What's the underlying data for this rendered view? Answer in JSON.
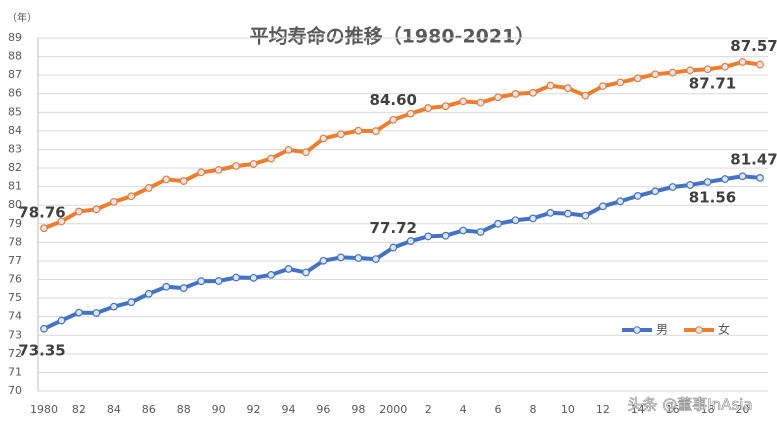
{
  "chart_data": {
    "type": "line",
    "title": "平均寿命の推移（1980-2021）",
    "y_axis_label": "（年）",
    "watermark": "头条 @董事InAsia",
    "categories": [
      "1980",
      null,
      "82",
      null,
      "84",
      null,
      "86",
      null,
      "88",
      null,
      "90",
      null,
      "92",
      null,
      "94",
      null,
      "96",
      null,
      "98",
      null,
      "2000",
      null,
      "2",
      null,
      "4",
      null,
      "6",
      null,
      "8",
      null,
      "10",
      null,
      "12",
      null,
      "14",
      null,
      "16",
      null,
      "18",
      null,
      "20",
      null
    ],
    "series": [
      {
        "name": "男",
        "color": "#4472c4",
        "values": [
          73.35,
          73.79,
          74.22,
          74.2,
          74.54,
          74.78,
          75.23,
          75.61,
          75.54,
          75.91,
          75.92,
          76.11,
          76.09,
          76.25,
          76.57,
          76.38,
          77.01,
          77.19,
          77.16,
          77.1,
          77.72,
          78.07,
          78.32,
          78.36,
          78.64,
          78.56,
          79.0,
          79.19,
          79.29,
          79.59,
          79.55,
          79.44,
          79.94,
          80.21,
          80.5,
          80.75,
          80.98,
          81.09,
          81.25,
          81.41,
          81.56,
          81.47
        ],
        "value_labels": [
          "73.35",
          null,
          null,
          null,
          null,
          null,
          null,
          null,
          null,
          null,
          null,
          null,
          null,
          null,
          null,
          null,
          null,
          null,
          null,
          null,
          "77.72",
          null,
          null,
          null,
          null,
          null,
          null,
          null,
          null,
          null,
          null,
          null,
          null,
          null,
          null,
          null,
          null,
          null,
          null,
          null,
          "81.56",
          "81.47"
        ]
      },
      {
        "name": "女",
        "color": "#ed7d31",
        "values": [
          78.76,
          79.13,
          79.66,
          79.78,
          80.18,
          80.48,
          80.93,
          81.39,
          81.3,
          81.77,
          81.9,
          82.11,
          82.22,
          82.51,
          82.98,
          82.85,
          83.59,
          83.82,
          84.01,
          83.99,
          84.6,
          84.93,
          85.23,
          85.33,
          85.59,
          85.52,
          85.81,
          85.99,
          86.05,
          86.44,
          86.3,
          85.9,
          86.41,
          86.61,
          86.83,
          87.05,
          87.14,
          87.26,
          87.32,
          87.45,
          87.71,
          87.57
        ],
        "value_labels": [
          "78.76",
          null,
          null,
          null,
          null,
          null,
          null,
          null,
          null,
          null,
          null,
          null,
          null,
          null,
          null,
          null,
          null,
          null,
          null,
          null,
          "84.60",
          null,
          null,
          null,
          null,
          null,
          null,
          null,
          null,
          null,
          null,
          null,
          null,
          null,
          null,
          null,
          null,
          null,
          null,
          null,
          "87.71",
          "87.57"
        ]
      }
    ],
    "ylim": [
      70,
      89
    ],
    "yticks": [
      70,
      71,
      72,
      73,
      74,
      75,
      76,
      77,
      78,
      79,
      80,
      81,
      82,
      83,
      84,
      85,
      86,
      87,
      88,
      89
    ],
    "grid": true,
    "legend": "bottom-right"
  }
}
